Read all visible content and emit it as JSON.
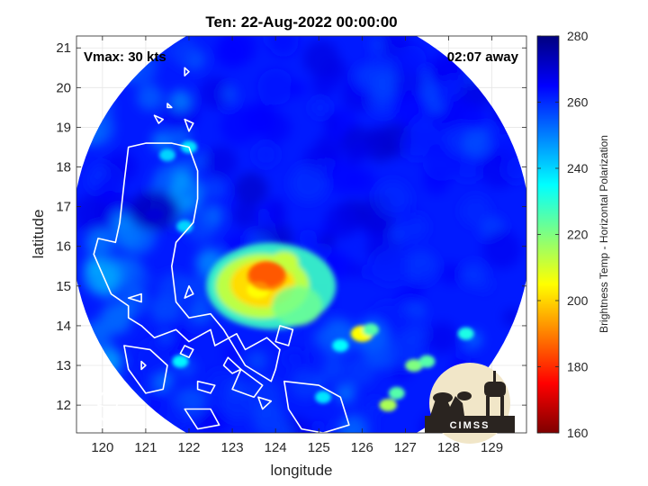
{
  "chart_data": {
    "type": "heatmap",
    "title": "Ten: 22-Aug-2022 00:00:00",
    "annotations": {
      "vmax": "Vmax: 30 kts",
      "time_away": "02:07 away"
    },
    "xlabel": "longitude",
    "ylabel": "latitude",
    "xlim": [
      119.4,
      129.8
    ],
    "ylim": [
      11.3,
      21.3
    ],
    "xticks": [
      120,
      121,
      122,
      123,
      124,
      125,
      126,
      127,
      128,
      129
    ],
    "yticks": [
      12,
      13,
      14,
      15,
      16,
      17,
      18,
      19,
      20,
      21
    ],
    "grid": true,
    "swath": {
      "center_lon": 124.6,
      "center_lat": 16.3,
      "radius_deg": 5.3
    },
    "colorbar": {
      "label": "Brightness Temp - Horizontal Polarization",
      "range": [
        160,
        280
      ],
      "ticks": [
        160,
        180,
        200,
        220,
        240,
        260,
        280
      ],
      "colors": [
        "#7f0000",
        "#ff0000",
        "#ff8000",
        "#ffff00",
        "#80ff80",
        "#00ffff",
        "#0080ff",
        "#0000ff",
        "#00007f"
      ]
    },
    "features": [
      {
        "name": "convective-core",
        "lon": 123.8,
        "lat": 15.3,
        "value": 175
      },
      {
        "name": "deep-convection",
        "lon": 123.6,
        "lat": 14.9,
        "value": 205
      },
      {
        "name": "cell-126",
        "lon": 126.0,
        "lat": 13.8,
        "value": 205
      },
      {
        "name": "cell-127",
        "lon": 127.2,
        "lat": 13.0,
        "value": 220
      },
      {
        "name": "cell-126b",
        "lon": 126.6,
        "lat": 12.0,
        "value": 215
      },
      {
        "name": "cold-spot-nw",
        "lon": 121.2,
        "lat": 16.8,
        "value": 270
      }
    ],
    "logo": "CIMSS"
  }
}
